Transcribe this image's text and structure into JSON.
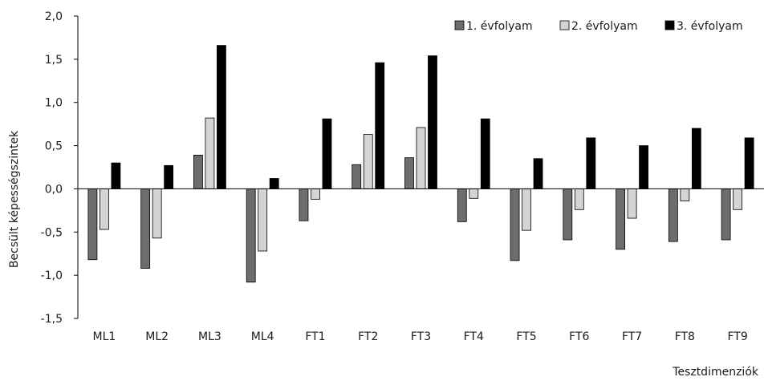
{
  "chart_data": {
    "type": "bar",
    "title": "",
    "xlabel": "Tesztdimenziók",
    "ylabel": "Becsült képességszintek",
    "ylim": [
      -1.5,
      2.0
    ],
    "yticks": [
      -1.5,
      -1.0,
      -0.5,
      0.0,
      0.5,
      1.0,
      1.5,
      2.0
    ],
    "ytick_labels": [
      "-1,5",
      "-1,0",
      "-0,5",
      "0,0",
      "0,5",
      "1,0",
      "1,5",
      "2,0"
    ],
    "grid": false,
    "legend_position": "top-right",
    "categories": [
      "ML1",
      "ML2",
      "ML3",
      "ML4",
      "FT1",
      "FT2",
      "FT3",
      "FT4",
      "FT5",
      "FT6",
      "FT7",
      "FT8",
      "FT9"
    ],
    "series": [
      {
        "name": "1. évfolyam",
        "color": "#6d6d6d",
        "values": [
          -0.82,
          -0.92,
          0.39,
          -1.08,
          -0.37,
          0.28,
          0.36,
          -0.38,
          -0.83,
          -0.59,
          -0.7,
          -0.61,
          -0.59
        ]
      },
      {
        "name": "2. évfolyam",
        "color": "#d4d4d4",
        "values": [
          -0.47,
          -0.57,
          0.82,
          -0.72,
          -0.12,
          0.63,
          0.71,
          -0.11,
          -0.48,
          -0.24,
          -0.34,
          -0.14,
          -0.24
        ]
      },
      {
        "name": "3. évfolyam",
        "color": "#000000",
        "values": [
          0.3,
          0.27,
          1.66,
          0.12,
          0.81,
          1.46,
          1.54,
          0.81,
          0.35,
          0.59,
          0.5,
          0.7,
          0.59
        ]
      }
    ]
  }
}
